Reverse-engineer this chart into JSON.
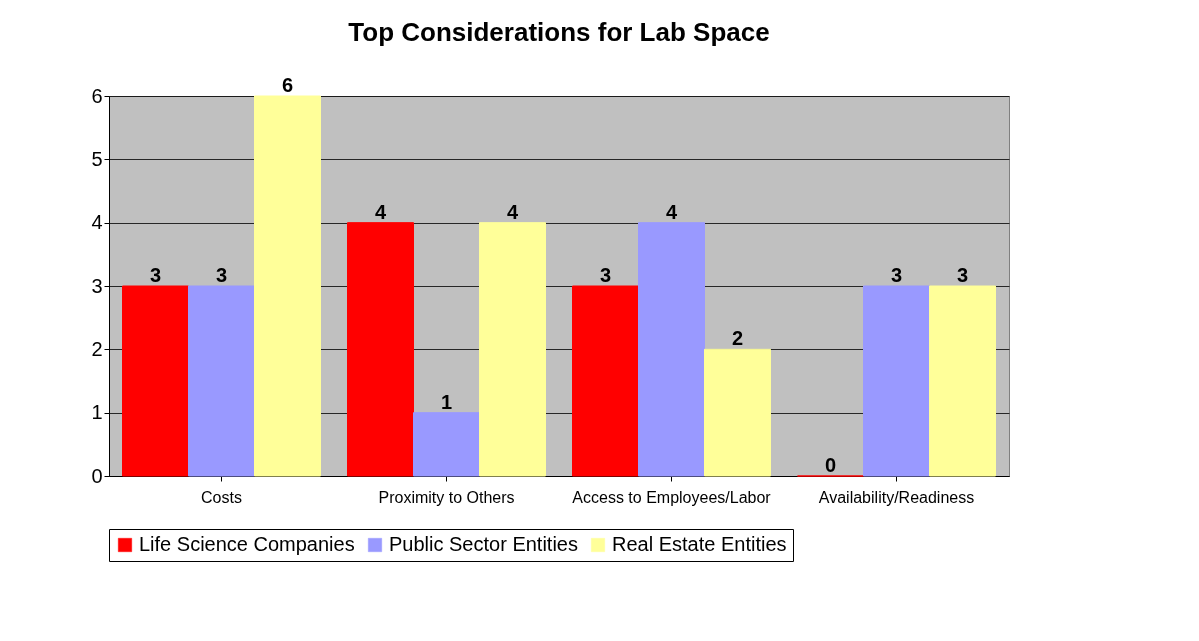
{
  "chart_data": {
    "type": "bar",
    "title": "Top Considerations for Lab Space",
    "categories": [
      "Costs",
      "Proximity to Others",
      "Access to Employees/Labor",
      "Availability/Readiness"
    ],
    "series": [
      {
        "name": "Life Science Companies",
        "color": "#ff0000",
        "values": [
          3,
          4,
          3,
          0
        ]
      },
      {
        "name": "Public Sector Entities",
        "color": "#9999ff",
        "values": [
          3,
          1,
          4,
          3
        ]
      },
      {
        "name": "Real Estate Entities",
        "color": "#ffff99",
        "values": [
          6,
          4,
          2,
          3
        ]
      }
    ],
    "ylim": [
      0,
      6
    ],
    "yticks": [
      0,
      1,
      2,
      3,
      4,
      5,
      6
    ],
    "grid": "y",
    "legend": "bottom",
    "data_labels": true
  }
}
